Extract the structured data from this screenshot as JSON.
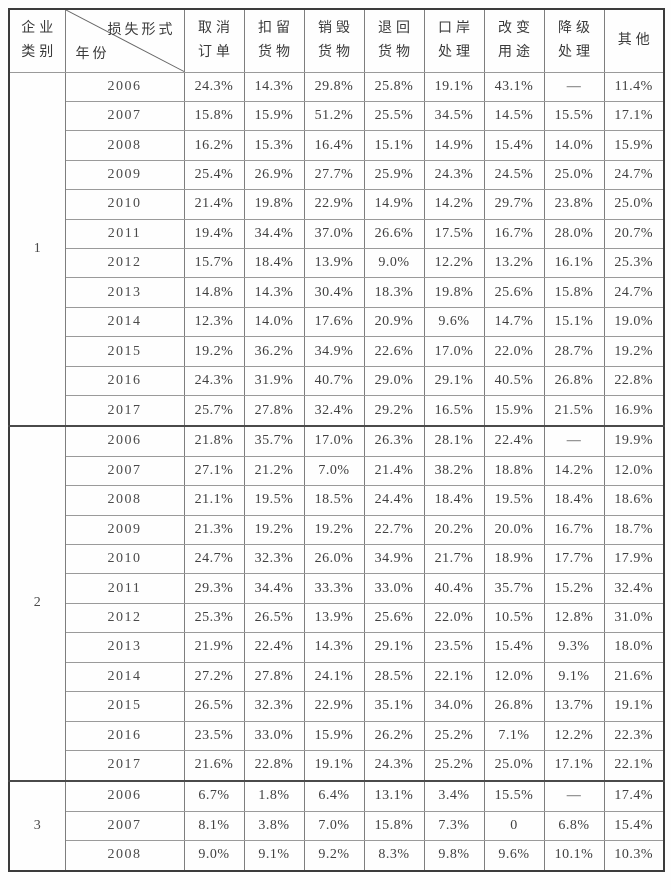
{
  "table": {
    "category_header": {
      "line1": "企业",
      "line2": "类别"
    },
    "corner_cell": {
      "top_right_label": "损失形式",
      "bottom_left_label": "年份"
    },
    "columns": [
      {
        "line1": "取消",
        "line2": "订单"
      },
      {
        "line1": "扣留",
        "line2": "货物"
      },
      {
        "line1": "销毁",
        "line2": "货物"
      },
      {
        "line1": "退回",
        "line2": "货物"
      },
      {
        "line1": "口岸",
        "line2": "处理"
      },
      {
        "line1": "改变",
        "line2": "用途"
      },
      {
        "line1": "降级",
        "line2": "处理"
      },
      {
        "line1": "其他",
        "line2": ""
      }
    ],
    "groups": [
      {
        "category": "1",
        "rows": [
          {
            "year": "2006",
            "values": [
              "24.3%",
              "14.3%",
              "29.8%",
              "25.8%",
              "19.1%",
              "43.1%",
              "—",
              "11.4%"
            ]
          },
          {
            "year": "2007",
            "values": [
              "15.8%",
              "15.9%",
              "51.2%",
              "25.5%",
              "34.5%",
              "14.5%",
              "15.5%",
              "17.1%"
            ]
          },
          {
            "year": "2008",
            "values": [
              "16.2%",
              "15.3%",
              "16.4%",
              "15.1%",
              "14.9%",
              "15.4%",
              "14.0%",
              "15.9%"
            ]
          },
          {
            "year": "2009",
            "values": [
              "25.4%",
              "26.9%",
              "27.7%",
              "25.9%",
              "24.3%",
              "24.5%",
              "25.0%",
              "24.7%"
            ]
          },
          {
            "year": "2010",
            "values": [
              "21.4%",
              "19.8%",
              "22.9%",
              "14.9%",
              "14.2%",
              "29.7%",
              "23.8%",
              "25.0%"
            ]
          },
          {
            "year": "2011",
            "values": [
              "19.4%",
              "34.4%",
              "37.0%",
              "26.6%",
              "17.5%",
              "16.7%",
              "28.0%",
              "20.7%"
            ]
          },
          {
            "year": "2012",
            "values": [
              "15.7%",
              "18.4%",
              "13.9%",
              "9.0%",
              "12.2%",
              "13.2%",
              "16.1%",
              "25.3%"
            ]
          },
          {
            "year": "2013",
            "values": [
              "14.8%",
              "14.3%",
              "30.4%",
              "18.3%",
              "19.8%",
              "25.6%",
              "15.8%",
              "24.7%"
            ]
          },
          {
            "year": "2014",
            "values": [
              "12.3%",
              "14.0%",
              "17.6%",
              "20.9%",
              "9.6%",
              "14.7%",
              "15.1%",
              "19.0%"
            ]
          },
          {
            "year": "2015",
            "values": [
              "19.2%",
              "36.2%",
              "34.9%",
              "22.6%",
              "17.0%",
              "22.0%",
              "28.7%",
              "19.2%"
            ]
          },
          {
            "year": "2016",
            "values": [
              "24.3%",
              "31.9%",
              "40.7%",
              "29.0%",
              "29.1%",
              "40.5%",
              "26.8%",
              "22.8%"
            ]
          },
          {
            "year": "2017",
            "values": [
              "25.7%",
              "27.8%",
              "32.4%",
              "29.2%",
              "16.5%",
              "15.9%",
              "21.5%",
              "16.9%"
            ]
          }
        ]
      },
      {
        "category": "2",
        "rows": [
          {
            "year": "2006",
            "values": [
              "21.8%",
              "35.7%",
              "17.0%",
              "26.3%",
              "28.1%",
              "22.4%",
              "—",
              "19.9%"
            ]
          },
          {
            "year": "2007",
            "values": [
              "27.1%",
              "21.2%",
              "7.0%",
              "21.4%",
              "38.2%",
              "18.8%",
              "14.2%",
              "12.0%"
            ]
          },
          {
            "year": "2008",
            "values": [
              "21.1%",
              "19.5%",
              "18.5%",
              "24.4%",
              "18.4%",
              "19.5%",
              "18.4%",
              "18.6%"
            ]
          },
          {
            "year": "2009",
            "values": [
              "21.3%",
              "19.2%",
              "19.2%",
              "22.7%",
              "20.2%",
              "20.0%",
              "16.7%",
              "18.7%"
            ]
          },
          {
            "year": "2010",
            "values": [
              "24.7%",
              "32.3%",
              "26.0%",
              "34.9%",
              "21.7%",
              "18.9%",
              "17.7%",
              "17.9%"
            ]
          },
          {
            "year": "2011",
            "values": [
              "29.3%",
              "34.4%",
              "33.3%",
              "33.0%",
              "40.4%",
              "35.7%",
              "15.2%",
              "32.4%"
            ]
          },
          {
            "year": "2012",
            "values": [
              "25.3%",
              "26.5%",
              "13.9%",
              "25.6%",
              "22.0%",
              "10.5%",
              "12.8%",
              "31.0%"
            ]
          },
          {
            "year": "2013",
            "values": [
              "21.9%",
              "22.4%",
              "14.3%",
              "29.1%",
              "23.5%",
              "15.4%",
              "9.3%",
              "18.0%"
            ]
          },
          {
            "year": "2014",
            "values": [
              "27.2%",
              "27.8%",
              "24.1%",
              "28.5%",
              "22.1%",
              "12.0%",
              "9.1%",
              "21.6%"
            ]
          },
          {
            "year": "2015",
            "values": [
              "26.5%",
              "32.3%",
              "22.9%",
              "35.1%",
              "34.0%",
              "26.8%",
              "13.7%",
              "19.1%"
            ]
          },
          {
            "year": "2016",
            "values": [
              "23.5%",
              "33.0%",
              "15.9%",
              "26.2%",
              "25.2%",
              "7.1%",
              "12.2%",
              "22.3%"
            ]
          },
          {
            "year": "2017",
            "values": [
              "21.6%",
              "22.8%",
              "19.1%",
              "24.3%",
              "25.2%",
              "25.0%",
              "17.1%",
              "22.1%"
            ]
          }
        ]
      },
      {
        "category": "3",
        "rows": [
          {
            "year": "2006",
            "values": [
              "6.7%",
              "1.8%",
              "6.4%",
              "13.1%",
              "3.4%",
              "15.5%",
              "—",
              "17.4%"
            ]
          },
          {
            "year": "2007",
            "values": [
              "8.1%",
              "3.8%",
              "7.0%",
              "15.8%",
              "7.3%",
              "0",
              "6.8%",
              "15.4%"
            ]
          },
          {
            "year": "2008",
            "values": [
              "9.0%",
              "9.1%",
              "9.2%",
              "8.3%",
              "9.8%",
              "9.6%",
              "10.1%",
              "10.3%"
            ]
          }
        ]
      }
    ]
  },
  "colors": {
    "outer_border": "#3c3c3c",
    "inner_border": "#9a9a9a",
    "text": "#3a3a3a",
    "background": "#fefefe"
  }
}
